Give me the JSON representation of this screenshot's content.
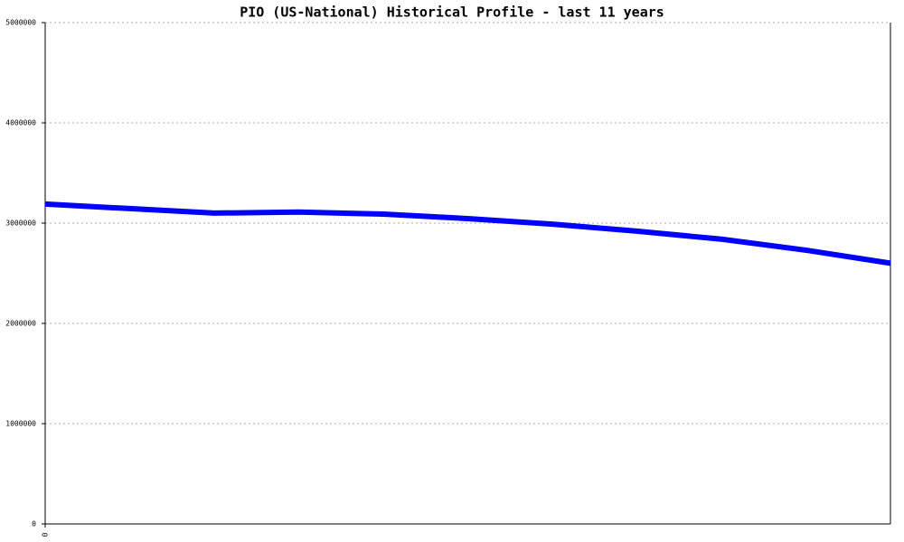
{
  "chart_data": {
    "type": "line",
    "title": "PIO (US-National) Historical Profile - last 11 years",
    "categories": [
      "0",
      null,
      null,
      null,
      null,
      null,
      null,
      null,
      null,
      null,
      null
    ],
    "series": [
      {
        "color": "#0000ff",
        "values": [
          3190000,
          3145000,
          3100000,
          3110000,
          3090000,
          3045000,
          2990000,
          2920000,
          2840000,
          2730000,
          2600000
        ]
      }
    ],
    "ylim": [
      0,
      5000000
    ],
    "yticks": [
      0,
      1000000,
      2000000,
      3000000,
      4000000,
      5000000
    ],
    "grid": true
  }
}
